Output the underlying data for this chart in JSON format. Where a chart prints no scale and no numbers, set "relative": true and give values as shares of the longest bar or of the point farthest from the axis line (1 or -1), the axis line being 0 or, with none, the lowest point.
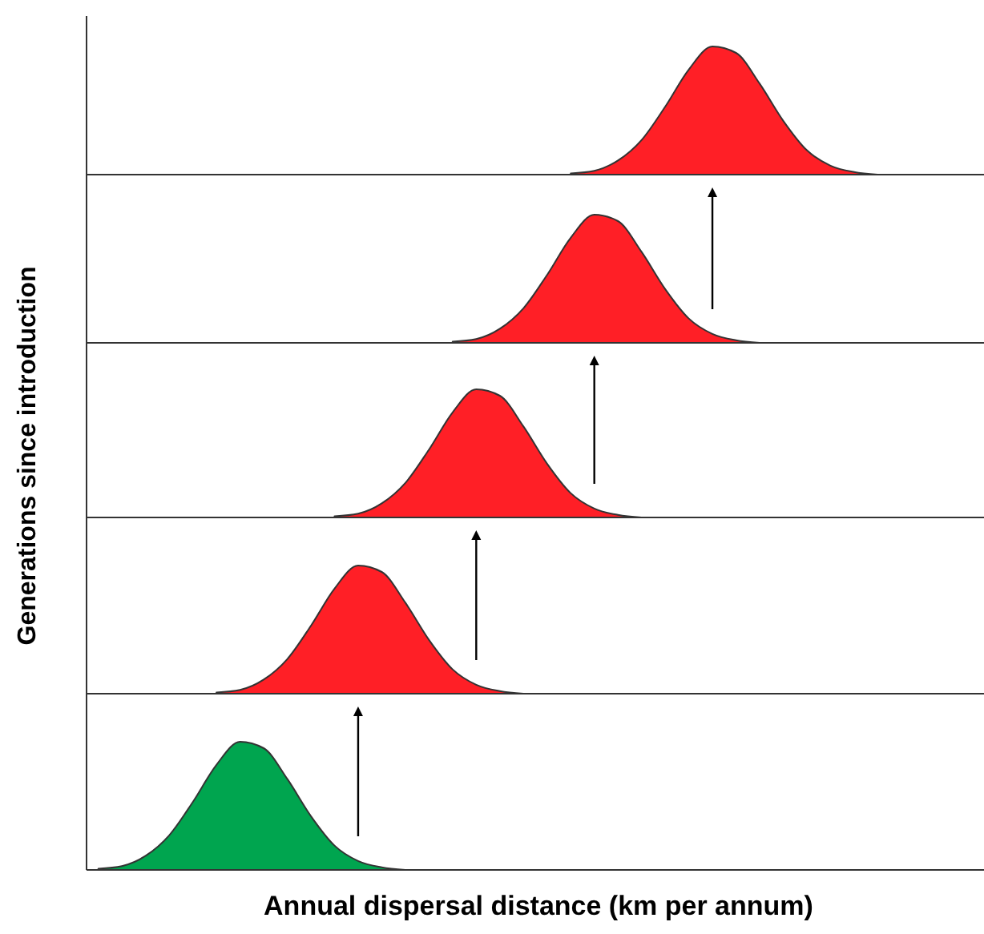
{
  "chart_data": [
    {
      "type": "area",
      "relative": true,
      "categories": [
        null,
        null,
        null,
        null,
        null,
        null,
        null,
        null,
        null,
        null,
        null,
        null,
        null,
        null,
        null,
        null,
        null,
        null,
        null,
        null,
        null,
        null,
        null,
        null,
        null,
        null,
        null,
        null,
        null,
        null,
        null,
        null,
        null,
        null,
        null,
        null,
        null,
        null
      ],
      "series": [
        {
          "color": "#ff1f26",
          "values": [
            null,
            null,
            null,
            null,
            null,
            null,
            null,
            null,
            null,
            null,
            null,
            null,
            null,
            null,
            null,
            null,
            null,
            null,
            null,
            null,
            0.01,
            0.03,
            0.11,
            0.27,
            0.53,
            0.82,
            1,
            0.95,
            0.71,
            0.42,
            0.19,
            0.07,
            0.02,
            0,
            null,
            null,
            null,
            null
          ]
        }
      ]
    },
    {
      "type": "area",
      "relative": true,
      "categories": [
        null,
        null,
        null,
        null,
        null,
        null,
        null,
        null,
        null,
        null,
        null,
        null,
        null,
        null,
        null,
        null,
        null,
        null,
        null,
        null,
        null,
        null,
        null,
        null,
        null,
        null,
        null,
        null,
        null,
        null,
        null,
        null,
        null,
        null,
        null,
        null,
        null,
        null
      ],
      "series": [
        {
          "color": "#ff1f26",
          "values": [
            null,
            null,
            null,
            null,
            null,
            null,
            null,
            null,
            null,
            null,
            null,
            null,
            null,
            null,
            null,
            0.01,
            0.03,
            0.11,
            0.27,
            0.53,
            0.82,
            1,
            0.95,
            0.71,
            0.42,
            0.19,
            0.07,
            0.02,
            0,
            null,
            null,
            null,
            null,
            null,
            null,
            null,
            null,
            null
          ]
        }
      ]
    },
    {
      "type": "area",
      "relative": true,
      "ylabel": "Generations since introduction",
      "categories": [
        null,
        null,
        null,
        null,
        null,
        null,
        null,
        null,
        null,
        null,
        null,
        null,
        null,
        null,
        null,
        null,
        null,
        null,
        null,
        null,
        null,
        null,
        null,
        null,
        null,
        null,
        null,
        null,
        null,
        null,
        null,
        null,
        null,
        null,
        null,
        null,
        null,
        null
      ],
      "series": [
        {
          "color": "#ff1f26",
          "values": [
            null,
            null,
            null,
            null,
            null,
            null,
            null,
            null,
            null,
            null,
            0.01,
            0.03,
            0.11,
            0.27,
            0.53,
            0.82,
            1,
            0.95,
            0.71,
            0.42,
            0.19,
            0.07,
            0.02,
            0,
            null,
            null,
            null,
            null,
            null,
            null,
            null,
            null,
            null,
            null,
            null,
            null,
            null,
            null
          ]
        }
      ]
    },
    {
      "type": "area",
      "relative": true,
      "categories": [
        null,
        null,
        null,
        null,
        null,
        null,
        null,
        null,
        null,
        null,
        null,
        null,
        null,
        null,
        null,
        null,
        null,
        null,
        null,
        null,
        null,
        null,
        null,
        null,
        null,
        null,
        null,
        null,
        null,
        null,
        null,
        null,
        null,
        null,
        null,
        null,
        null,
        null
      ],
      "series": [
        {
          "color": "#ff1f26",
          "values": [
            null,
            null,
            null,
            null,
            null,
            0.01,
            0.03,
            0.11,
            0.27,
            0.53,
            0.82,
            1,
            0.95,
            0.71,
            0.42,
            0.19,
            0.07,
            0.02,
            0,
            null,
            null,
            null,
            null,
            null,
            null,
            null,
            null,
            null,
            null,
            null,
            null,
            null,
            null,
            null,
            null,
            null,
            null,
            null
          ]
        }
      ]
    },
    {
      "type": "area",
      "relative": true,
      "xlabel": "Annual dispersal distance (km per annum)",
      "categories": [
        null,
        null,
        null,
        null,
        null,
        null,
        null,
        null,
        null,
        null,
        null,
        null,
        null,
        null,
        null,
        null,
        null,
        null,
        null,
        null,
        null,
        null,
        null,
        null,
        null,
        null,
        null,
        null,
        null,
        null,
        null,
        null,
        null,
        null,
        null,
        null,
        null,
        null
      ],
      "series": [
        {
          "color": "#00a54f",
          "values": [
            0.01,
            0.03,
            0.11,
            0.27,
            0.53,
            0.82,
            1,
            0.95,
            0.71,
            0.42,
            0.19,
            0.07,
            0.02,
            0,
            null,
            null,
            null,
            null,
            null,
            null,
            null,
            null,
            null,
            null,
            null,
            null,
            null,
            null,
            null,
            null,
            null,
            null,
            null,
            null,
            null,
            null,
            null,
            null
          ]
        }
      ]
    }
  ]
}
